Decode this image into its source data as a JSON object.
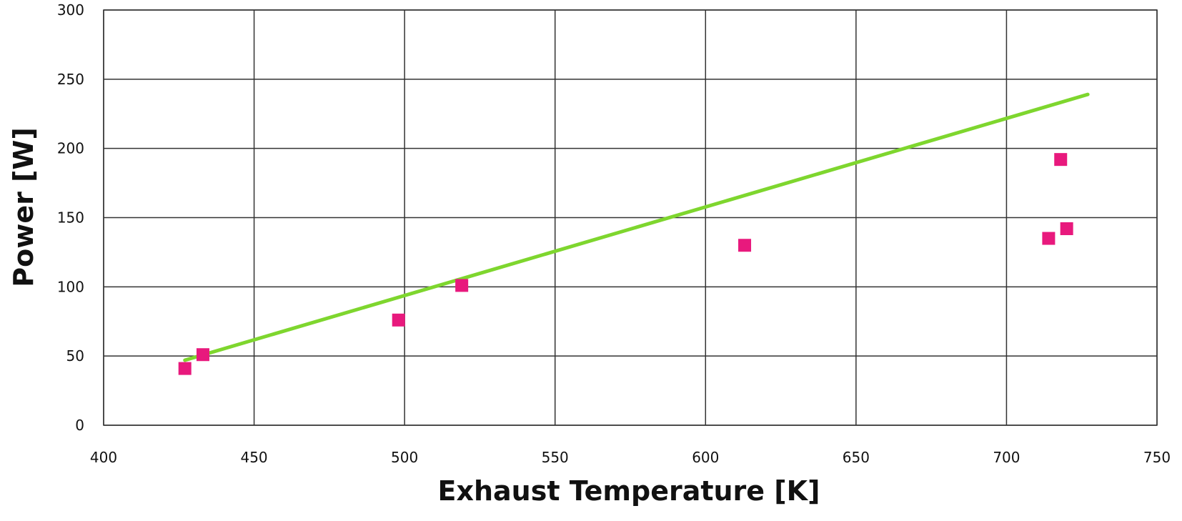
{
  "chart_data": {
    "type": "scatter",
    "title": "",
    "xlabel": "Exhaust Temperature [K]",
    "ylabel": "Power [W]",
    "xlim": [
      400,
      750
    ],
    "ylim": [
      0,
      300
    ],
    "xticks": [
      400,
      450,
      500,
      550,
      600,
      650,
      700,
      750
    ],
    "yticks": [
      0,
      50,
      100,
      150,
      200,
      250,
      300
    ],
    "xtick_labels": [
      "400",
      "450",
      "500",
      "550",
      "600",
      "650",
      "700",
      "750"
    ],
    "ytick_labels": [
      "0",
      "50",
      "100",
      "150",
      "200",
      "250",
      "300"
    ],
    "grid": true,
    "legend": "none",
    "series": [
      {
        "type": "scatter",
        "color": "#e8197d",
        "marker": "square",
        "x": [
          427,
          433,
          498,
          519,
          613,
          714,
          718,
          720
        ],
        "y": [
          41,
          51,
          76,
          101,
          130,
          135,
          192,
          142
        ]
      },
      {
        "type": "line",
        "color": "#7ed62e",
        "x": [
          427,
          727
        ],
        "y": [
          47,
          239
        ]
      }
    ]
  }
}
